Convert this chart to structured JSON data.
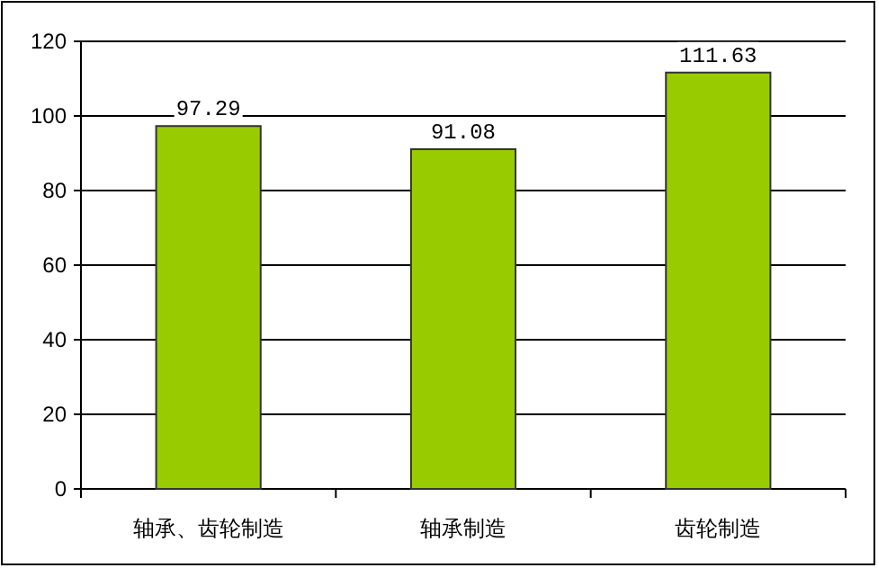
{
  "chart_data": {
    "type": "bar",
    "categories": [
      "轴承、齿轮制造",
      "轴承制造",
      "齿轮制造"
    ],
    "values": [
      97.29,
      91.08,
      111.63
    ],
    "color": "#99cc00",
    "ylim": [
      0,
      120
    ],
    "yticks": [
      0,
      20,
      40,
      60,
      80,
      100,
      120
    ],
    "grid": "y",
    "data_labels": true
  }
}
